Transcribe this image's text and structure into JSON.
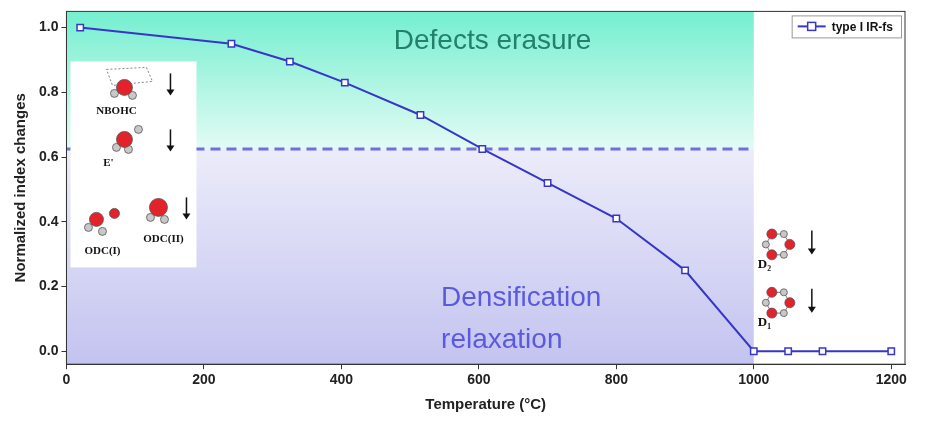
{
  "chart_data": {
    "type": "line",
    "x_label": "Temperature (°C)",
    "y_label": "Normalized index changes",
    "xlim": [
      0,
      1220
    ],
    "ylim": [
      -0.04,
      1.05
    ],
    "xticks": [
      0,
      200,
      400,
      600,
      800,
      1000,
      1200
    ],
    "yticks": [
      {
        "value": 0,
        "label": "0.0"
      },
      {
        "value": 0.2,
        "label": "0.2"
      },
      {
        "value": 0.4,
        "label": "0.4"
      },
      {
        "value": 0.6,
        "label": "0.6"
      },
      {
        "value": 0.8,
        "label": "0.8"
      },
      {
        "value": 1,
        "label": "1.0"
      }
    ],
    "grid": false,
    "legend": "upper right",
    "series": [
      {
        "name": "type I IR-fs",
        "color": "#3636c8",
        "marker": "square",
        "line_style": "solid",
        "x": [
          20,
          240,
          325,
          405,
          515,
          605,
          700,
          800,
          900,
          1000,
          1050,
          1100,
          1200
        ],
        "values": [
          1.0,
          0.95,
          0.895,
          0.83,
          0.73,
          0.625,
          0.52,
          0.41,
          0.25,
          0.0,
          0.0,
          0.0,
          0.0
        ]
      }
    ],
    "regions": [
      {
        "label": "Defects erasure",
        "x": [
          0,
          1000
        ],
        "y": [
          0.625,
          1.05
        ],
        "color": "#23806a"
      },
      {
        "label": [
          "Densification",
          "relaxation"
        ],
        "x": [
          0,
          1000
        ],
        "y": [
          -0.04,
          0.625
        ],
        "color": "#5a5ae0"
      }
    ],
    "reference_line": {
      "y": 0.625,
      "x": [
        0,
        1000
      ],
      "line_style": "dashed",
      "color": "#6f6fe0"
    },
    "insets": [
      {
        "labels": [
          "NBOHC",
          "E'",
          "ODC(I)",
          "ODC(II)"
        ]
      },
      {
        "labels": [
          "D₂",
          "D₁"
        ]
      }
    ]
  }
}
